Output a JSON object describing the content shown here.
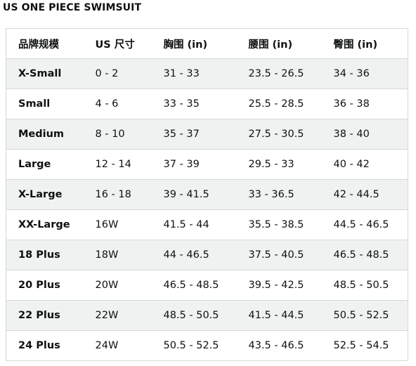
{
  "title": "US ONE PIECE SWIMSUIT",
  "table": {
    "headers": [
      "品牌规模",
      "US 尺寸",
      "胸围 (in)",
      "腰围 (in)",
      "臀围 (in)"
    ],
    "rows": [
      [
        "X-Small",
        "0 - 2",
        "31 - 33",
        "23.5 - 26.5",
        "34 - 36"
      ],
      [
        "Small",
        "4 - 6",
        "33 - 35",
        "25.5 - 28.5",
        "36 - 38"
      ],
      [
        "Medium",
        "8 - 10",
        "35 - 37",
        "27.5 - 30.5",
        "38 - 40"
      ],
      [
        "Large",
        "12 - 14",
        "37 - 39",
        "29.5 - 33",
        "40 - 42"
      ],
      [
        "X-Large",
        "16 - 18",
        "39 - 41.5",
        "33 - 36.5",
        "42 - 44.5"
      ],
      [
        "XX-Large",
        "16W",
        "41.5 - 44",
        "35.5 - 38.5",
        "44.5 - 46.5"
      ],
      [
        "18 Plus",
        "18W",
        "44 - 46.5",
        "37.5 - 40.5",
        "46.5 - 48.5"
      ],
      [
        "20 Plus",
        "20W",
        "46.5 - 48.5",
        "39.5 - 42.5",
        "48.5 - 50.5"
      ],
      [
        "22 Plus",
        "22W",
        "48.5 - 50.5",
        "41.5 - 44.5",
        "50.5 - 52.5"
      ],
      [
        "24 Plus",
        "24W",
        "50.5 - 52.5",
        "43.5 - 46.5",
        "52.5 - 54.5"
      ]
    ]
  },
  "colors": {
    "text": "#0f1111",
    "border": "#d5d9d9",
    "stripe": "#f0f2f2",
    "background": "#ffffff"
  }
}
